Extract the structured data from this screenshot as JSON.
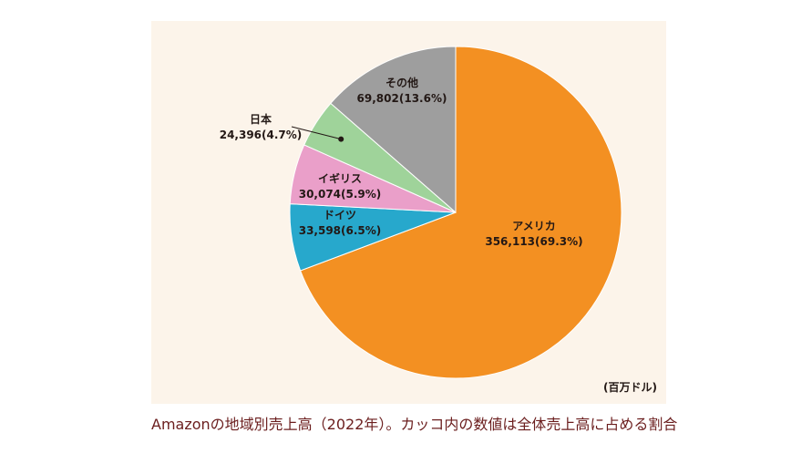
{
  "chart_data": {
    "type": "pie",
    "unit": "(百万ドル)",
    "slices": [
      {
        "label": "アメリカ",
        "value": 356113,
        "percent_label": "356,113(69.3%)",
        "color": "#f39022"
      },
      {
        "label": "ドイツ",
        "value": 33598,
        "percent_label": "33,598(6.5%)",
        "color": "#27a8cc"
      },
      {
        "label": "イギリス",
        "value": 30074,
        "percent_label": "30,074(5.9%)",
        "color": "#ea9fc9"
      },
      {
        "label": "日本",
        "value": 24396,
        "percent_label": "24,396(4.7%)",
        "color": "#9fd39a"
      },
      {
        "label": "その他",
        "value": 69802,
        "percent_label": "69,802(13.6%)",
        "color": "#9e9e9e"
      }
    ]
  },
  "caption": "Amazonの地域別売上高（2022年）。カッコ内の数値は全体売上高に占める割合"
}
